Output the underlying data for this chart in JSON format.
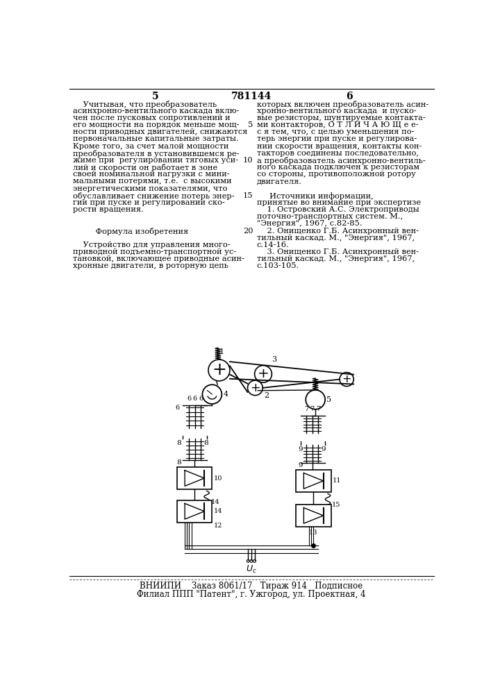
{
  "page_number_left": "5",
  "page_number_center": "781144",
  "page_number_right": "6",
  "left_column_text": [
    "    Учитывая, что преобразователь",
    "асинхронно-вентильного каскада вклю-",
    "чен после пусковых сопротивлений и",
    "его мощности на порядок меньше мощ-",
    "ности приводных двигателей, снижаются",
    "первоначальные капитальные затраты.",
    "Кроме того, за счет малой мощности",
    "преобразователя в установившемся ре-",
    "жиме при  регулировании тяговых уси-",
    "лий и скорости он работает в зоне",
    "своей номинальной нагрузки с мини-",
    "мальными потерями, т.е.  с высокими",
    "энергетическими показателями, что",
    "обуславливает снижение потерь энер-",
    "гии при пуске и регулировании ско-",
    "рости вращения.",
    "",
    "",
    "         Формула изобретения",
    "",
    "    Устройство для управления много-",
    "приводной подъемно-транспортной ус-",
    "тановкой, включающее приводные асин-",
    "хронные двигатели, в роторную цепь"
  ],
  "right_column_text": [
    "которых включен преобразователь асин-",
    "хронно-вентильного каскада  и пуско-",
    "вые резисторы, шунтируемые контакта-",
    "ми контакторов, О Т Л И Ч А Ю Щ е е-",
    "с я тем, что, с целью уменьшения по-",
    "терь энергии при пуске и регулирова-",
    "нии скорости вращения, контакты кон-",
    "такторов соединены последовательно,",
    "а преобразователь асинхронно-вентиль-",
    "ного каскада подключен к резисторам",
    "со стороны, противоположной ротору",
    "двигателя.",
    "",
    "     Источники информации,",
    "принятые во внимание при экспертизе",
    "    1. Островский А.С. Электроприводы",
    "поточно-транспортных систем. М.,",
    "\"Энергия\", 1967, с.82-85.",
    "    2. Онищенко Г.Б. Асинхронный вен-",
    "тильный каскад. М., \"Энергия\", 1967,",
    "с.14-16.",
    "    3. Онищенко Г.Б. Асинхронный вен-",
    "тильный каскад. М., \"Энергия\", 1967,",
    "с.103-105."
  ],
  "line_numbers": {
    "3": "5",
    "8": "10",
    "13": "15",
    "18": "20"
  },
  "footer_line1": "ВНИИПИ    Заказ 8061/17   Тираж 914   Подписное",
  "footer_line2": "Филиал ППП \"Патент\", г. Ужгород, ул. Проектная, 4",
  "background_color": "#ffffff",
  "text_color": "#000000",
  "font_size": 8.2
}
